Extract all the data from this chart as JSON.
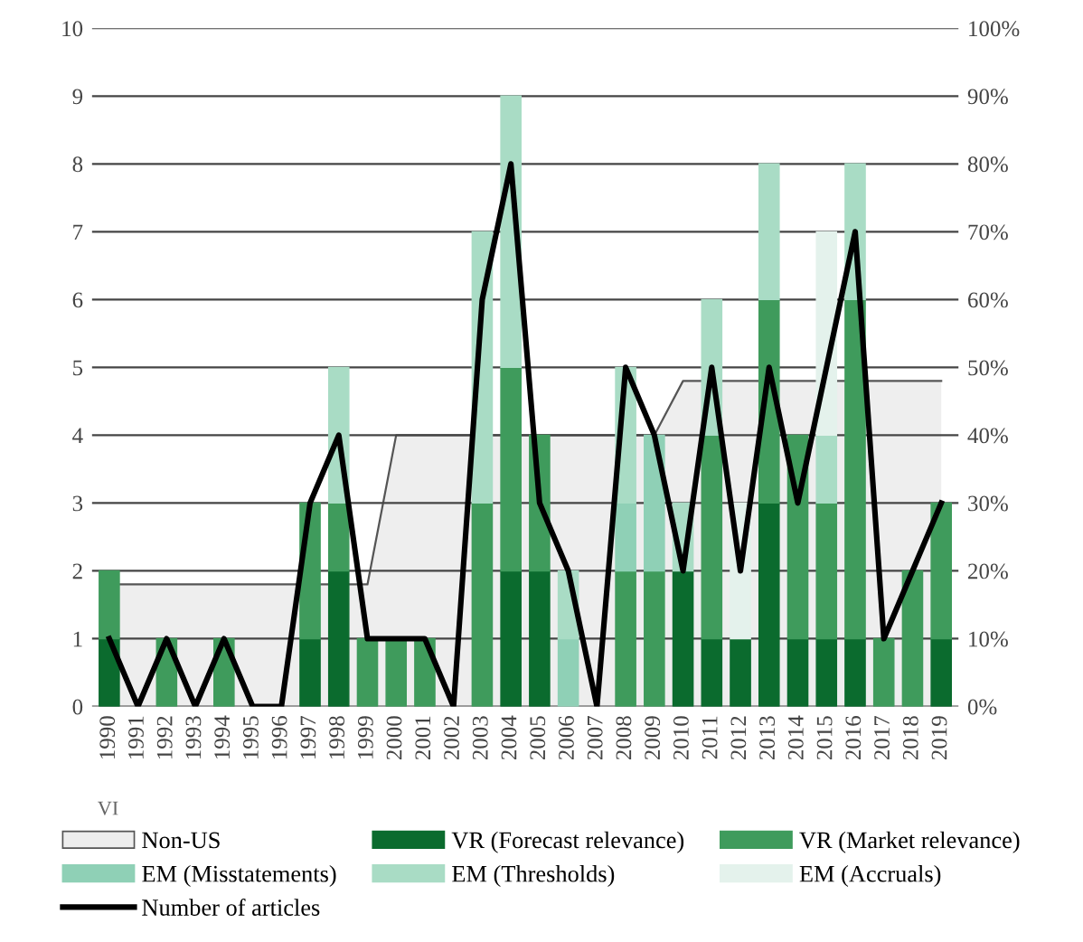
{
  "chart_data": {
    "type": "bar",
    "stacked": true,
    "categories": [
      "1990",
      "1991",
      "1992",
      "1993",
      "1994",
      "1995",
      "1996",
      "1997",
      "1998",
      "1999",
      "2000",
      "2001",
      "2002",
      "2003",
      "2004",
      "2005",
      "2006",
      "2007",
      "2008",
      "2009",
      "2010",
      "2011",
      "2012",
      "2013",
      "2014",
      "2015",
      "2016",
      "2017",
      "2018",
      "2019"
    ],
    "series": [
      {
        "name": "Non-US",
        "type": "area",
        "axis": "y2",
        "color": "#eeeeee",
        "values": [
          18,
          18,
          18,
          18,
          18,
          18,
          18,
          18,
          18,
          18,
          40,
          40,
          40,
          40,
          40,
          40,
          40,
          40,
          40,
          40,
          48,
          48,
          48,
          48,
          48,
          48,
          48,
          48,
          48,
          48
        ]
      },
      {
        "name": "VR (Forecast relevance)",
        "color": "#0b6b2e",
        "values": [
          1,
          0,
          0,
          0,
          0,
          0,
          0,
          1,
          2,
          0,
          0,
          0,
          0,
          0,
          2,
          2,
          0,
          0,
          0,
          0,
          2,
          1,
          1,
          3,
          1,
          1,
          1,
          0,
          0,
          1
        ]
      },
      {
        "name": "VR (Market relevance)",
        "color": "#3f9b5c",
        "values": [
          1,
          0,
          1,
          0,
          1,
          0,
          0,
          2,
          1,
          1,
          1,
          1,
          0,
          3,
          3,
          2,
          0,
          0,
          2,
          2,
          0,
          3,
          0,
          3,
          3,
          2,
          5,
          1,
          2,
          2
        ]
      },
      {
        "name": "EM (Misstatements)",
        "color": "#8fd0b6",
        "values": [
          0,
          0,
          0,
          0,
          0,
          0,
          0,
          0,
          0,
          0,
          0,
          0,
          0,
          0,
          0,
          0,
          1,
          0,
          1,
          2,
          0,
          0,
          0,
          0,
          0,
          0,
          0,
          0,
          0,
          0
        ]
      },
      {
        "name": "EM (Thresholds)",
        "color": "#a9dcc5",
        "values": [
          0,
          0,
          0,
          0,
          0,
          0,
          0,
          0,
          2,
          0,
          0,
          0,
          0,
          4,
          4,
          0,
          1,
          0,
          2,
          0,
          1,
          2,
          0,
          2,
          0,
          1,
          2,
          0,
          0,
          0
        ]
      },
      {
        "name": "EM (Accruals)",
        "color": "#e4f2ec",
        "values": [
          0,
          0,
          0,
          0,
          0,
          0,
          0,
          0,
          0,
          0,
          0,
          0,
          0,
          0,
          0,
          0,
          0,
          0,
          0,
          0,
          0,
          0,
          2,
          0,
          0,
          3,
          0,
          0,
          0,
          0
        ]
      },
      {
        "name": "Number of articles",
        "type": "line",
        "color": "#000000",
        "values": [
          1,
          0,
          1,
          0,
          1,
          0,
          0,
          3,
          4,
          1,
          1,
          1,
          0,
          6,
          8,
          3,
          2,
          0,
          5,
          4,
          2,
          5,
          2,
          5,
          3,
          5,
          7,
          1,
          2,
          3
        ]
      }
    ],
    "ylim": [
      0,
      10
    ],
    "yticks": [
      0,
      1,
      2,
      3,
      4,
      5,
      6,
      7,
      8,
      9,
      10
    ],
    "y2lim": [
      0,
      100
    ],
    "y2ticks": [
      {
        "value": 0,
        "label": "0%"
      },
      {
        "value": 10,
        "label": "10%"
      },
      {
        "value": 20,
        "label": "20%"
      },
      {
        "value": 30,
        "label": "30%"
      },
      {
        "value": 40,
        "label": "40%"
      },
      {
        "value": 50,
        "label": "50%"
      },
      {
        "value": 60,
        "label": "60%"
      },
      {
        "value": 70,
        "label": "70%"
      },
      {
        "value": 80,
        "label": "80%"
      },
      {
        "value": 90,
        "label": "90%"
      },
      {
        "value": 100,
        "label": "100%"
      }
    ],
    "grid": "y",
    "legend": "bottom",
    "annotations": [
      "VI"
    ]
  }
}
